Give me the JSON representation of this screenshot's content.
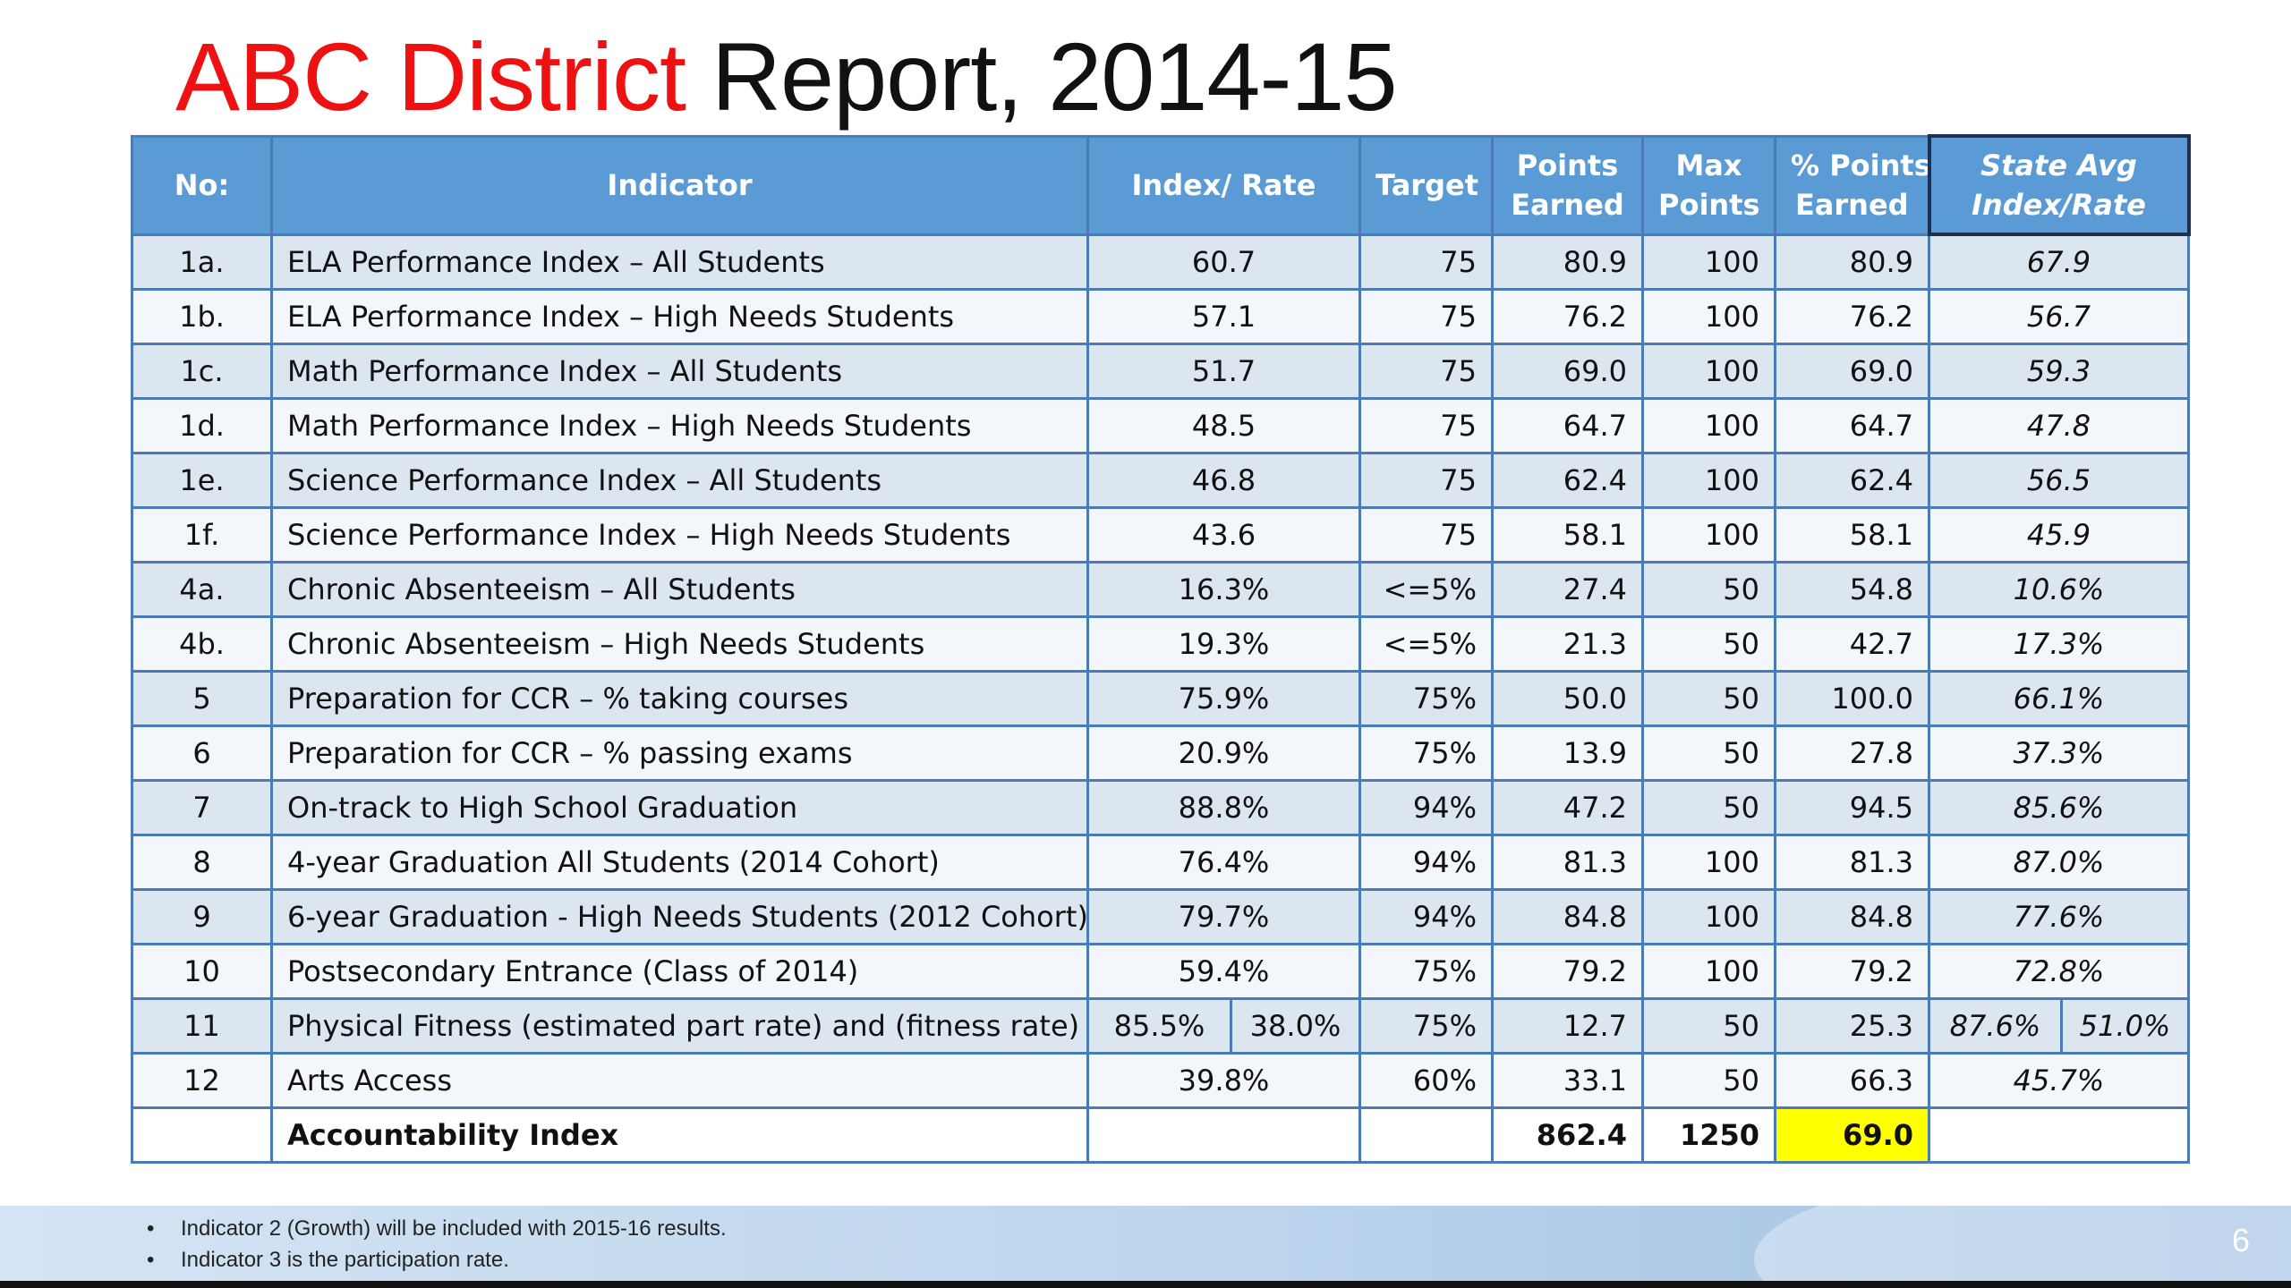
{
  "slide": {
    "title_accent": "ABC District",
    "title_rest": " Report, 2014-15",
    "page_number": "6"
  },
  "table": {
    "headers": {
      "no": "No:",
      "indicator": "Indicator",
      "index_rate": "Index/ Rate",
      "target": "Target",
      "points_earned_1": "Points",
      "points_earned_2": "Earned",
      "max_points_1": "Max",
      "max_points_2": "Points",
      "pct_points_1": "% Points",
      "pct_points_2": "Earned",
      "state_avg_1": "State Avg",
      "state_avg_2": "Index/Rate"
    },
    "rows": [
      {
        "no": "1a.",
        "indicator": "ELA Performance Index – All Students",
        "index_rate": "60.7",
        "target": "75",
        "points_earned": "80.9",
        "max_points": "100",
        "pct_points": "80.9",
        "state_avg": "67.9"
      },
      {
        "no": "1b.",
        "indicator": "ELA Performance Index – High Needs Students",
        "index_rate": "57.1",
        "target": "75",
        "points_earned": "76.2",
        "max_points": "100",
        "pct_points": "76.2",
        "state_avg": "56.7"
      },
      {
        "no": "1c.",
        "indicator": "Math Performance Index – All Students",
        "index_rate": "51.7",
        "target": "75",
        "points_earned": "69.0",
        "max_points": "100",
        "pct_points": "69.0",
        "state_avg": "59.3"
      },
      {
        "no": "1d.",
        "indicator": "Math Performance Index – High Needs Students",
        "index_rate": "48.5",
        "target": "75",
        "points_earned": "64.7",
        "max_points": "100",
        "pct_points": "64.7",
        "state_avg": "47.8"
      },
      {
        "no": "1e.",
        "indicator": "Science Performance Index – All Students",
        "index_rate": "46.8",
        "target": "75",
        "points_earned": "62.4",
        "max_points": "100",
        "pct_points": "62.4",
        "state_avg": "56.5"
      },
      {
        "no": "1f.",
        "indicator": "Science Performance Index – High Needs Students",
        "index_rate": "43.6",
        "target": "75",
        "points_earned": "58.1",
        "max_points": "100",
        "pct_points": "58.1",
        "state_avg": "45.9"
      },
      {
        "no": "4a.",
        "indicator": "Chronic Absenteeism – All Students",
        "index_rate": "16.3%",
        "target": "<=5%",
        "points_earned": "27.4",
        "max_points": "50",
        "pct_points": "54.8",
        "state_avg": "10.6%"
      },
      {
        "no": "4b.",
        "indicator": "Chronic Absenteeism – High Needs Students",
        "index_rate": "19.3%",
        "target": "<=5%",
        "points_earned": "21.3",
        "max_points": "50",
        "pct_points": "42.7",
        "state_avg": "17.3%"
      },
      {
        "no": "5",
        "indicator": "Preparation for CCR – % taking courses",
        "index_rate": "75.9%",
        "target": "75%",
        "points_earned": "50.0",
        "max_points": "50",
        "pct_points": "100.0",
        "state_avg": "66.1%"
      },
      {
        "no": "6",
        "indicator": "Preparation for CCR – % passing exams",
        "index_rate": "20.9%",
        "target": "75%",
        "points_earned": "13.9",
        "max_points": "50",
        "pct_points": "27.8",
        "state_avg": "37.3%"
      },
      {
        "no": "7",
        "indicator": "On-track to High School Graduation",
        "index_rate": "88.8%",
        "target": "94%",
        "points_earned": "47.2",
        "max_points": "50",
        "pct_points": "94.5",
        "state_avg": "85.6%"
      },
      {
        "no": "8",
        "indicator": "4-year Graduation All Students (2014 Cohort)",
        "index_rate": "76.4%",
        "target": "94%",
        "points_earned": "81.3",
        "max_points": "100",
        "pct_points": "81.3",
        "state_avg": "87.0%"
      },
      {
        "no": "9",
        "indicator": "6-year Graduation - High Needs Students (2012 Cohort)",
        "index_rate": "79.7%",
        "target": "94%",
        "points_earned": "84.8",
        "max_points": "100",
        "pct_points": "84.8",
        "state_avg": "77.6%"
      },
      {
        "no": "10",
        "indicator": "Postsecondary Entrance (Class of 2014)",
        "index_rate": "59.4%",
        "target": "75%",
        "points_earned": "79.2",
        "max_points": "100",
        "pct_points": "79.2",
        "state_avg": "72.8%"
      }
    ],
    "fitness_row": {
      "no": "11",
      "indicator": "Physical Fitness (estimated part rate) and (fitness rate)",
      "index_rate_a": "85.5%",
      "index_rate_b": "38.0%",
      "target": "75%",
      "points_earned": "12.7",
      "max_points": "50",
      "pct_points": "25.3",
      "state_avg_a": "87.6%",
      "state_avg_b": "51.0%"
    },
    "arts_row": {
      "no": "12",
      "indicator": "Arts Access",
      "index_rate": "39.8%",
      "target": "60%",
      "points_earned": "33.1",
      "max_points": "50",
      "pct_points": "66.3",
      "state_avg": "45.7%"
    },
    "total_row": {
      "indicator": "Accountability Index",
      "points_earned": "862.4",
      "max_points": "1250",
      "pct_points": "69.0"
    }
  },
  "notes": [
    "Indicator 2 (Growth) will be included with 2015-16 results.",
    "Indicator 3 is the participation rate."
  ],
  "colors": {
    "title_accent": "#ee1111",
    "header_bg": "#5b9bd5",
    "row_even": "#dce6f1",
    "row_odd": "#f3f6fa",
    "highlight": "#ffff00",
    "border": "#4a7bb7"
  }
}
